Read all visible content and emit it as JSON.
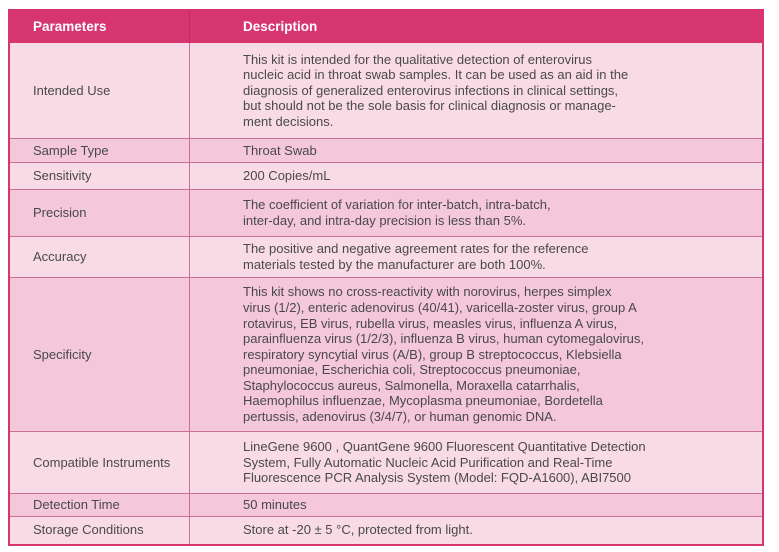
{
  "colors": {
    "header_bg": "#D63570",
    "header_text": "#FFFFFF",
    "row_light": "#F9DBE6",
    "row_dark": "#F4C7D9",
    "outer_border": "#D63570",
    "divider": "#C9719B",
    "body_text": "#49494C"
  },
  "table": {
    "columns": [
      "Parameters",
      "Description"
    ],
    "rows": [
      {
        "parameter": "Intended Use",
        "description": "This kit is intended for the qualitative detection of enterovirus\nnucleic acid in throat swab samples. It can be used as an aid in the\ndiagnosis of generalized enterovirus infections in clinical settings,\nbut should not be the sole basis for clinical diagnosis or manage-\nment decisions."
      },
      {
        "parameter": "Sample Type",
        "description": "Throat Swab"
      },
      {
        "parameter": "Sensitivity",
        "description": "200 Copies/mL"
      },
      {
        "parameter": "Precision",
        "description": "The coefficient of variation for inter-batch, intra-batch,\ninter-day, and intra-day precision is less than 5%."
      },
      {
        "parameter": "Accuracy",
        "description": "The positive and negative agreement rates for the reference\nmaterials tested by the manufacturer are both 100%."
      },
      {
        "parameter": "Specificity",
        "description": "This kit shows no cross-reactivity with norovirus, herpes simplex\nvirus (1/2), enteric adenovirus (40/41), varicella-zoster virus, group A\nrotavirus, EB virus, rubella virus, measles virus, influenza A virus,\nparainfluenza virus (1/2/3), influenza B virus, human cytomegalovirus,\nrespiratory syncytial virus (A/B), group B streptococcus, Klebsiella\npneumoniae, Escherichia coli, Streptococcus pneumoniae,\nStaphylococcus aureus, Salmonella, Moraxella catarrhalis,\nHaemophilus influenzae, Mycoplasma pneumoniae, Bordetella\npertussis, adenovirus (3/4/7), or human genomic DNA."
      },
      {
        "parameter": "Compatible Instruments",
        "description": "LineGene 9600 , QuantGene 9600 Fluorescent Quantitative Detection\nSystem, Fully Automatic Nucleic Acid Purification and Real-Time\nFluorescence PCR Analysis System (Model: FQD-A1600), ABI7500"
      },
      {
        "parameter": "Detection Time",
        "description": "50 minutes"
      },
      {
        "parameter": "Storage Conditions",
        "description": "Store at -20 ± 5 °C, protected from light."
      }
    ]
  }
}
